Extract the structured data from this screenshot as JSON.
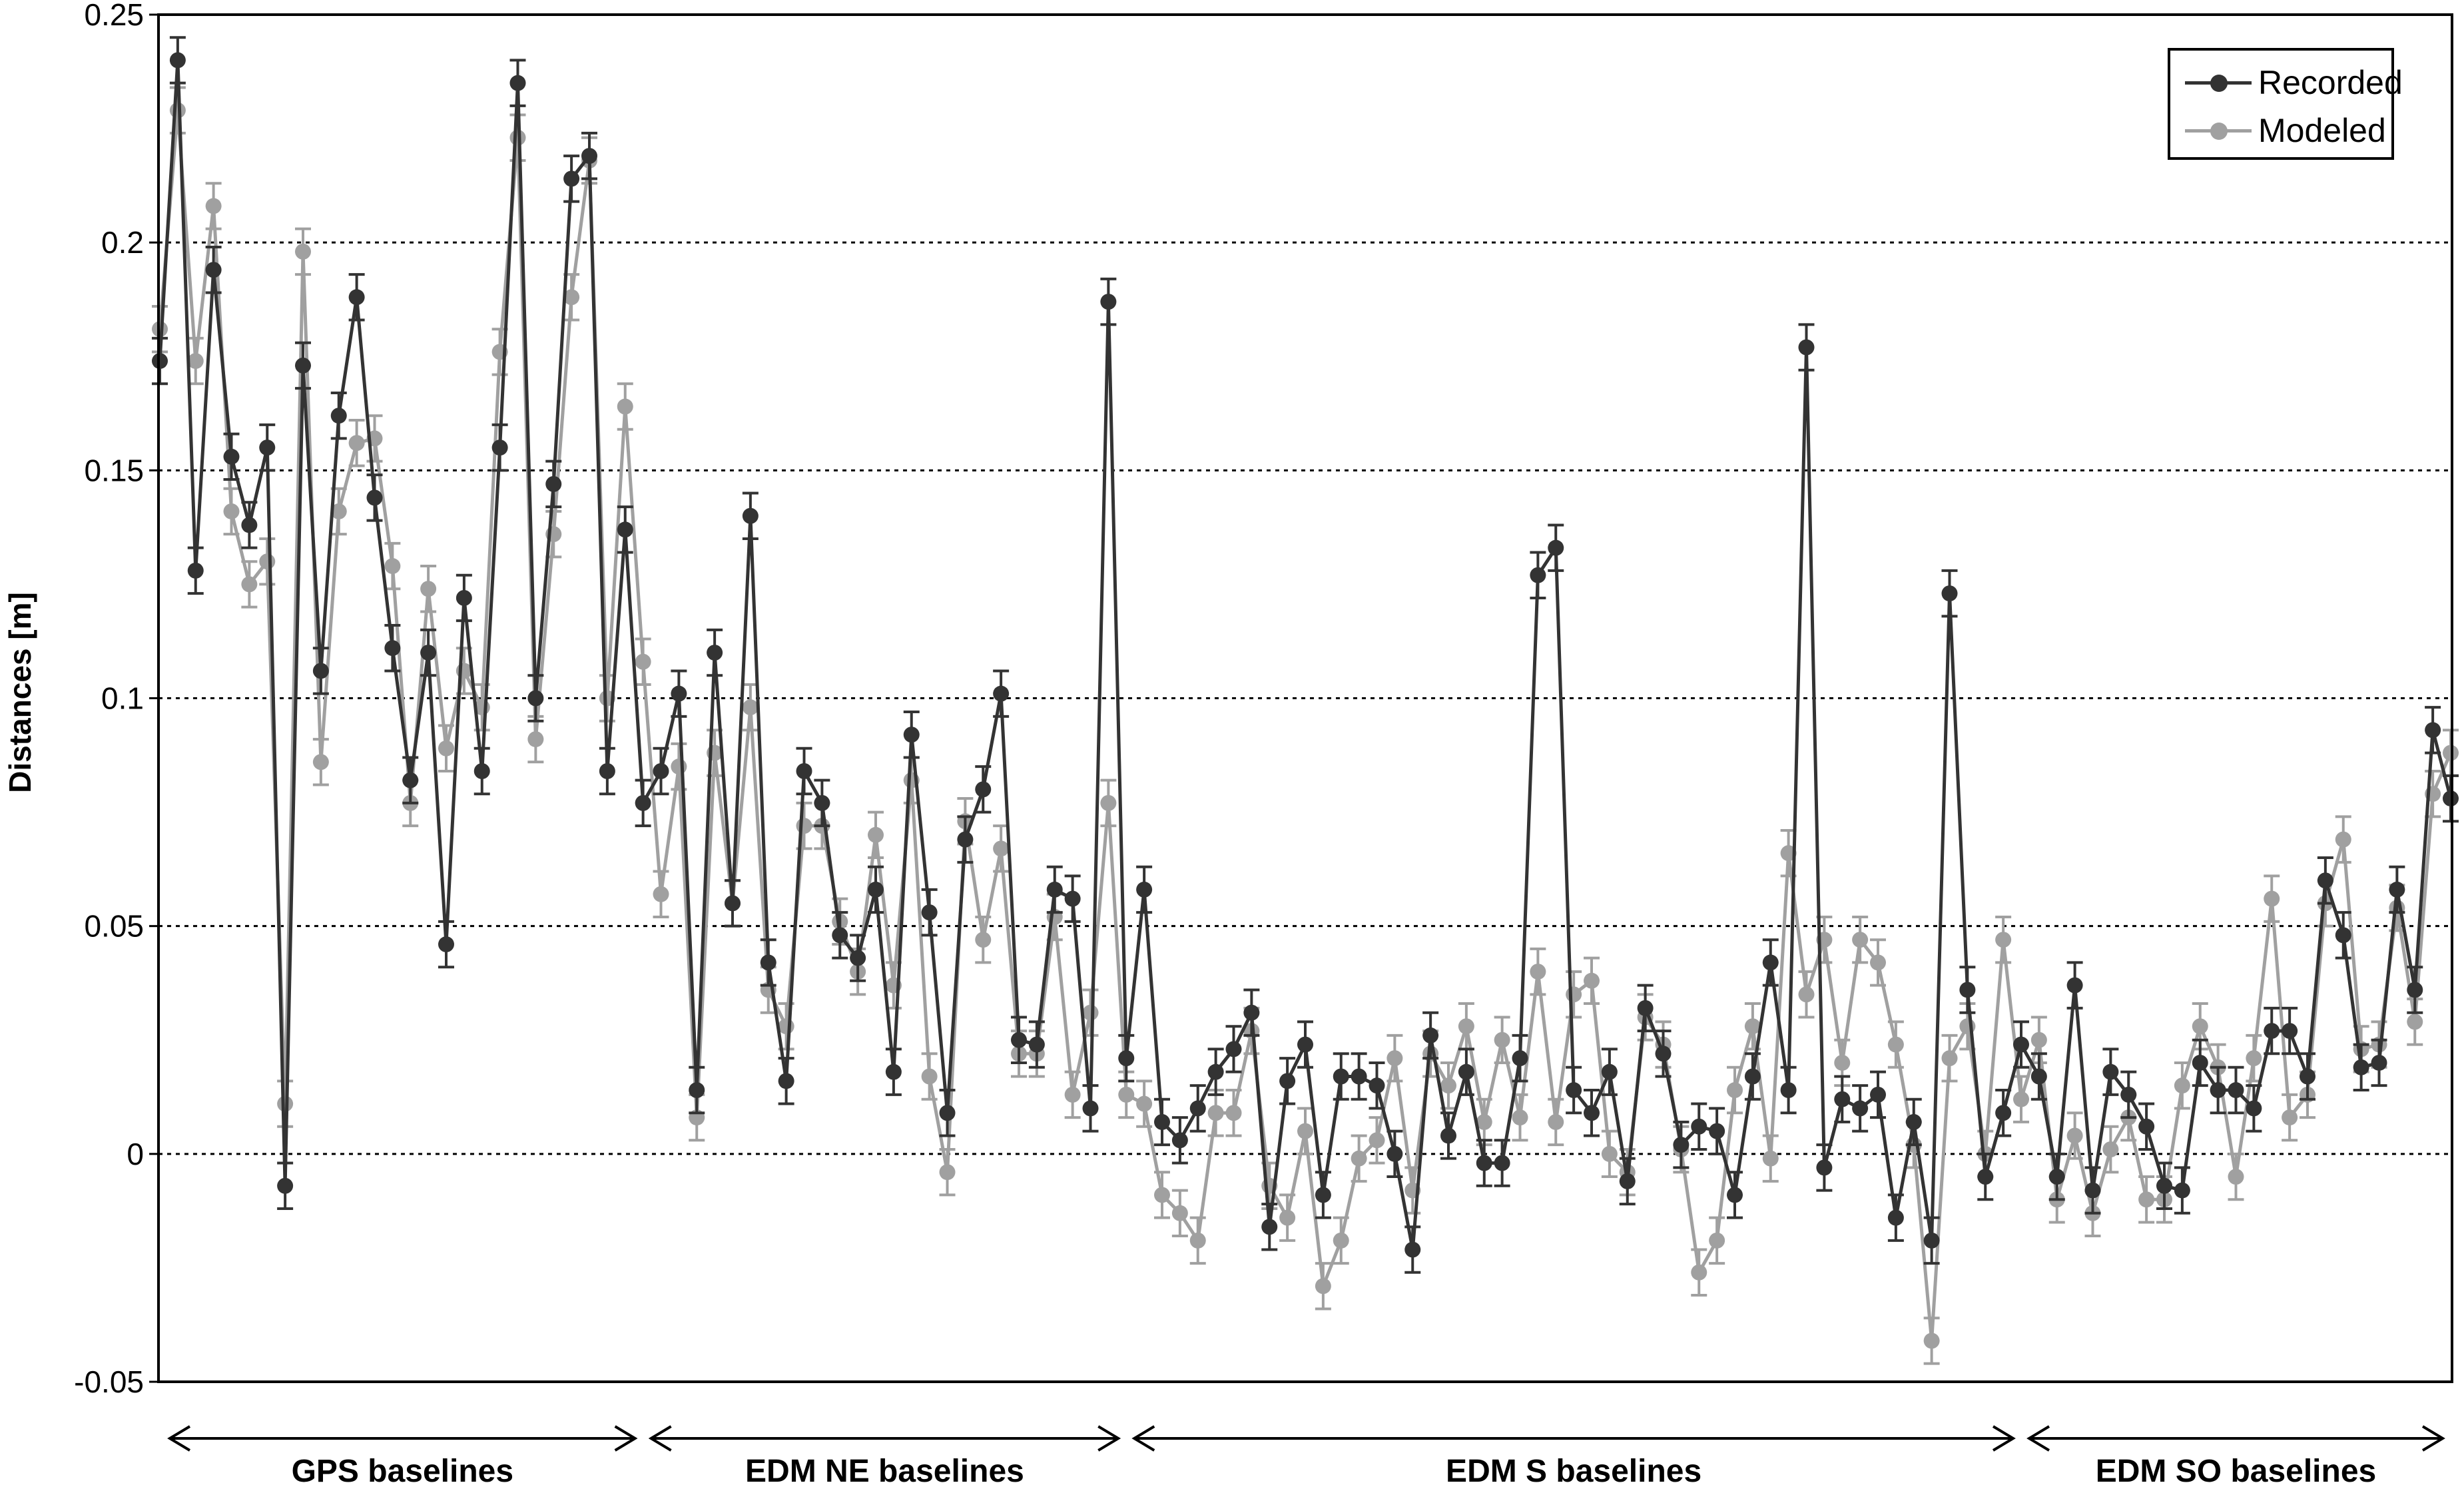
{
  "chart_data": {
    "type": "line",
    "ylabel": "Distances [m]",
    "xlabel": "",
    "ylim": [
      -0.05,
      0.25
    ],
    "yticks": [
      -0.05,
      0,
      0.05,
      0.1,
      0.15,
      0.2,
      0.25
    ],
    "ytick_labels": [
      "-0.05",
      "0",
      "0.05",
      "0.1",
      "0.15",
      "0.2",
      "0.25"
    ],
    "grid": "horizontal dotted",
    "legend_position": "top-right",
    "error": 0.005,
    "series": [
      {
        "name": "Recorded",
        "color": "#333333",
        "values": [
          0.174,
          0.24,
          0.128,
          0.194,
          0.153,
          0.138,
          0.155,
          -0.007,
          0.173,
          0.106,
          0.162,
          0.188,
          0.144,
          0.111,
          0.082,
          0.11,
          0.046,
          0.122,
          0.084,
          0.155,
          0.235,
          0.1,
          0.147,
          0.214,
          0.219,
          0.084,
          0.137,
          0.077,
          0.084,
          0.101,
          0.014,
          0.11,
          0.055,
          0.14,
          0.042,
          0.016,
          0.084,
          0.077,
          0.048,
          0.043,
          0.058,
          0.018,
          0.092,
          0.053,
          0.009,
          0.069,
          0.08,
          0.101,
          0.025,
          0.024,
          0.058,
          0.056,
          0.01,
          0.187,
          0.021,
          0.058,
          0.007,
          0.003,
          0.01,
          0.018,
          0.023,
          0.031,
          -0.016,
          0.016,
          0.024,
          -0.009,
          0.017,
          0.017,
          0.015,
          0.0,
          -0.021,
          0.026,
          0.004,
          0.018,
          -0.002,
          -0.002,
          0.021,
          0.127,
          0.133,
          0.014,
          0.009,
          0.018,
          -0.006,
          0.032,
          0.022,
          0.002,
          0.006,
          0.005,
          -0.009,
          0.017,
          0.042,
          0.014,
          0.177,
          -0.003,
          0.012,
          0.01,
          0.013,
          -0.014,
          0.007,
          -0.019,
          0.123,
          0.036,
          -0.005,
          0.009,
          0.024,
          0.017,
          -0.005,
          0.037,
          -0.008,
          0.018,
          0.013,
          0.006,
          -0.007,
          -0.008,
          0.02,
          0.014,
          0.014,
          0.01,
          0.027,
          0.027,
          0.017,
          0.06,
          0.048,
          0.019,
          0.02,
          0.058,
          0.036,
          0.093,
          0.078
        ]
      },
      {
        "name": "Modeled",
        "color": "#a0a0a0",
        "values": [
          0.181,
          0.229,
          0.174,
          0.208,
          0.141,
          0.125,
          0.13,
          0.011,
          0.198,
          0.086,
          0.141,
          0.156,
          0.157,
          0.129,
          0.077,
          0.124,
          0.089,
          0.106,
          0.098,
          0.176,
          0.223,
          0.091,
          0.136,
          0.188,
          0.218,
          0.1,
          0.164,
          0.108,
          0.057,
          0.085,
          0.008,
          0.088,
          0.055,
          0.098,
          0.036,
          0.028,
          0.072,
          0.072,
          0.051,
          0.04,
          0.07,
          0.037,
          0.082,
          0.017,
          -0.004,
          0.073,
          0.047,
          0.067,
          0.022,
          0.022,
          0.052,
          0.013,
          0.031,
          0.077,
          0.013,
          0.011,
          -0.009,
          -0.013,
          -0.019,
          0.009,
          0.009,
          0.027,
          -0.007,
          -0.014,
          0.005,
          -0.029,
          -0.019,
          -0.001,
          0.003,
          0.021,
          -0.008,
          0.022,
          0.015,
          0.028,
          0.007,
          0.025,
          0.008,
          0.04,
          0.007,
          0.035,
          0.038,
          0.0,
          -0.004,
          0.03,
          0.024,
          0.001,
          -0.026,
          -0.019,
          0.014,
          0.028,
          -0.001,
          0.066,
          0.035,
          0.047,
          0.02,
          0.047,
          0.042,
          0.024,
          0.002,
          -0.041,
          0.021,
          0.028,
          0.0,
          0.047,
          0.012,
          0.025,
          -0.01,
          0.004,
          -0.013,
          0.001,
          0.008,
          -0.01,
          -0.01,
          0.015,
          0.028,
          0.019,
          -0.005,
          0.021,
          0.056,
          0.008,
          0.013,
          0.055,
          0.069,
          0.023,
          0.024,
          0.054,
          0.029,
          0.079,
          0.088
        ]
      }
    ],
    "groups": [
      {
        "label": "GPS baselines",
        "start": 0,
        "end": 27
      },
      {
        "label": "EDM NE baselines",
        "start": 27,
        "end": 54
      },
      {
        "label": "EDM S baselines",
        "start": 54,
        "end": 104
      },
      {
        "label": "EDM SO baselines",
        "start": 104,
        "end": 128
      }
    ]
  }
}
